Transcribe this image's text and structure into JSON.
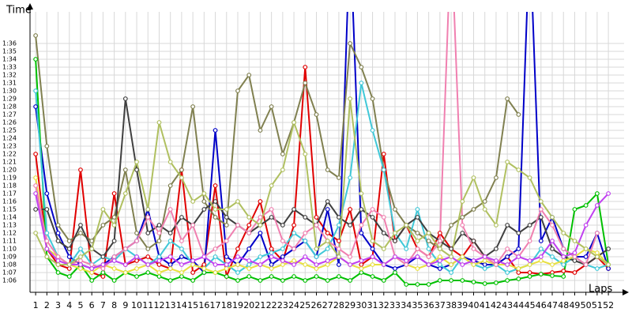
{
  "chart_data": {
    "type": "line",
    "y_title": "Time",
    "x_title": "Laps",
    "xlim": [
      0.5,
      53.4
    ],
    "ylim": [
      64.5,
      100
    ],
    "grid": true,
    "x": [
      1,
      2,
      3,
      4,
      5,
      6,
      7,
      8,
      9,
      10,
      11,
      12,
      13,
      14,
      15,
      16,
      17,
      18,
      19,
      20,
      21,
      22,
      23,
      24,
      25,
      26,
      27,
      28,
      29,
      30,
      31,
      32,
      33,
      34,
      35,
      36,
      37,
      38,
      39,
      40,
      41,
      42,
      43,
      44,
      45,
      46,
      47,
      48,
      49,
      50,
      51,
      52
    ],
    "xticks": [
      1,
      2,
      3,
      4,
      5,
      6,
      7,
      8,
      9,
      10,
      11,
      12,
      13,
      14,
      15,
      16,
      17,
      18,
      19,
      20,
      21,
      22,
      23,
      24,
      25,
      26,
      27,
      28,
      29,
      30,
      31,
      32,
      33,
      34,
      35,
      36,
      37,
      38,
      39,
      40,
      41,
      42,
      43,
      44,
      45,
      46,
      47,
      48,
      49,
      50,
      51,
      52
    ],
    "yticks": [
      {
        "value": 66,
        "label": "1:06"
      },
      {
        "value": 67,
        "label": "1:07"
      },
      {
        "value": 68,
        "label": "1:08"
      },
      {
        "value": 69,
        "label": "1:09"
      },
      {
        "value": 70,
        "label": "1:10"
      },
      {
        "value": 71,
        "label": "1:11"
      },
      {
        "value": 72,
        "label": "1:12"
      },
      {
        "value": 73,
        "label": "1:13"
      },
      {
        "value": 74,
        "label": "1:14"
      },
      {
        "value": 75,
        "label": "1:15"
      },
      {
        "value": 76,
        "label": "1:16"
      },
      {
        "value": 77,
        "label": "1:17"
      },
      {
        "value": 78,
        "label": "1:18"
      },
      {
        "value": 79,
        "label": "1:19"
      },
      {
        "value": 80,
        "label": "1:20"
      },
      {
        "value": 81,
        "label": "1:21"
      },
      {
        "value": 82,
        "label": "1:22"
      },
      {
        "value": 83,
        "label": "1:23"
      },
      {
        "value": 84,
        "label": "1:24"
      },
      {
        "value": 85,
        "label": "1:25"
      },
      {
        "value": 86,
        "label": "1:26"
      },
      {
        "value": 87,
        "label": "1:27"
      },
      {
        "value": 88,
        "label": "1:28"
      },
      {
        "value": 89,
        "label": "1:29"
      },
      {
        "value": 90,
        "label": "1:30"
      },
      {
        "value": 91,
        "label": "1:31"
      },
      {
        "value": 92,
        "label": "1:32"
      },
      {
        "value": 93,
        "label": "1:33"
      },
      {
        "value": 94,
        "label": "1:34"
      },
      {
        "value": 95,
        "label": "1:35"
      },
      {
        "value": 96,
        "label": "1:36"
      }
    ],
    "series": [
      {
        "color": "#e00000",
        "values": [
          82,
          70,
          68,
          67.5,
          80,
          67,
          66.5,
          77,
          68,
          68.5,
          69,
          68,
          67.5,
          80,
          67,
          68,
          78,
          66.5,
          70,
          73,
          76,
          70,
          68.5,
          73,
          93,
          74,
          72,
          71,
          75,
          68,
          69,
          82,
          71,
          73,
          70,
          69,
          72,
          70,
          69,
          71,
          69,
          68,
          69,
          67,
          67,
          66.8,
          67,
          67.2,
          67,
          68,
          69,
          67.5
        ]
      },
      {
        "color": "#0000c8",
        "values": [
          88,
          77,
          72,
          69,
          68,
          67.5,
          68,
          69,
          70,
          71,
          75,
          69,
          68,
          69,
          68.5,
          67,
          85,
          69,
          68,
          70,
          72,
          68,
          69,
          70,
          71,
          69,
          75,
          68,
          110,
          72,
          70,
          68,
          67.5,
          68,
          69,
          68,
          67.5,
          68,
          69,
          68.5,
          68,
          68,
          69,
          70,
          110,
          71,
          74,
          70,
          69,
          69,
          72,
          67.5
        ]
      },
      {
        "color": "#00c000",
        "values": [
          94,
          69,
          67,
          66.5,
          68,
          66,
          67,
          66,
          67,
          66.5,
          67,
          66.5,
          66,
          66.5,
          66,
          67,
          67,
          66.5,
          66,
          66.5,
          66,
          66.5,
          66,
          66.5,
          66,
          66.5,
          66,
          66.5,
          66,
          67,
          66.5,
          66,
          67,
          65.5,
          65.5,
          65.5,
          66,
          66,
          66,
          65.8,
          65.6,
          65.7,
          66,
          66.2,
          66.5,
          66.8,
          66.6,
          66.5,
          75,
          75.5,
          77,
          68
        ]
      },
      {
        "color": "#808050",
        "values": [
          97,
          83,
          73,
          71,
          72,
          71,
          73,
          74,
          80,
          72,
          70,
          71,
          78,
          80,
          88,
          76,
          74,
          73,
          90,
          92,
          85,
          88,
          82,
          86,
          91,
          87,
          80,
          79,
          96,
          93,
          89,
          80,
          75,
          73,
          72,
          71,
          70,
          73,
          74,
          75,
          76,
          79,
          89,
          87,
          null,
          null,
          null,
          null,
          null,
          null,
          null,
          null
        ]
      },
      {
        "color": "#40c8d8",
        "values": [
          90,
          72,
          69,
          68,
          70,
          68,
          69,
          68.5,
          70,
          69,
          68,
          69,
          71,
          70,
          68,
          67.5,
          69,
          68,
          67,
          68,
          69,
          69.5,
          70,
          72,
          71,
          69,
          70,
          73,
          79,
          91,
          85,
          80,
          72,
          70,
          75,
          70,
          68,
          67,
          69,
          68,
          67.5,
          68,
          67,
          67.5,
          68,
          70,
          69,
          68,
          69,
          68,
          67.5,
          68
        ]
      },
      {
        "color": "#404040",
        "values": [
          75,
          75,
          71,
          70,
          73,
          70,
          69,
          71,
          89,
          80,
          72,
          73,
          72,
          74,
          73,
          75,
          76,
          74,
          73,
          72,
          73,
          74,
          73,
          75,
          74,
          73,
          76,
          74,
          73,
          75,
          74,
          72,
          71,
          73,
          74,
          72,
          71,
          70,
          72,
          71,
          69,
          70,
          73,
          72,
          73,
          74,
          70,
          69,
          68.5,
          68,
          69,
          70
        ]
      },
      {
        "color": "#e8e040",
        "values": [
          79,
          70,
          69,
          68,
          67.5,
          67,
          68,
          67.5,
          67,
          67.5,
          68,
          67,
          67.5,
          67,
          68,
          67.5,
          67,
          67.5,
          68,
          67.5,
          68,
          67.5,
          68,
          68.5,
          68,
          67.5,
          68,
          69,
          68,
          67.5,
          68,
          68,
          69,
          68,
          67.5,
          68,
          69,
          68,
          69,
          68,
          68.5,
          68,
          68,
          67.5,
          68,
          68.5,
          68,
          68.5,
          69,
          70,
          69.5,
          68
        ]
      },
      {
        "color": "#f080b0",
        "values": [
          78,
          71,
          69,
          68,
          68.5,
          68,
          67.5,
          69,
          70,
          71,
          74,
          72,
          75,
          71,
          73,
          69,
          70,
          71,
          73,
          72,
          74,
          75,
          71,
          70,
          72,
          73,
          71,
          70,
          69,
          73,
          75,
          74,
          69,
          68,
          70,
          69,
          71,
          110,
          73,
          70,
          69,
          68,
          70,
          69,
          71,
          75,
          73,
          70,
          69,
          68,
          72,
          null
        ]
      },
      {
        "color": "#c040f0",
        "values": [
          77,
          70,
          68.5,
          68,
          68,
          67.5,
          68,
          68.5,
          68,
          69,
          68,
          68.5,
          69,
          68,
          68.5,
          69,
          68,
          68,
          69,
          68.5,
          68,
          69,
          68.5,
          68,
          69,
          68,
          68.5,
          69,
          68,
          68.5,
          69,
          68,
          69,
          68.5,
          69,
          68,
          68.5,
          69,
          68,
          68.5,
          69,
          68.5,
          68,
          69,
          68.5,
          69,
          71,
          69,
          69.5,
          73,
          75.5,
          77
        ]
      },
      {
        "color": "#b0c060",
        "values": [
          72,
          69,
          68,
          68,
          69,
          70,
          75,
          73,
          77,
          81,
          75,
          86,
          81,
          79,
          76,
          77,
          75,
          75,
          76,
          74,
          73,
          78,
          80,
          86,
          82,
          70,
          71,
          69,
          89,
          77,
          71,
          70,
          72,
          73,
          71,
          72,
          70,
          69,
          76,
          79,
          75,
          73,
          81,
          80,
          79,
          76,
          74,
          72,
          71,
          70,
          69,
          68
        ]
      }
    ]
  }
}
